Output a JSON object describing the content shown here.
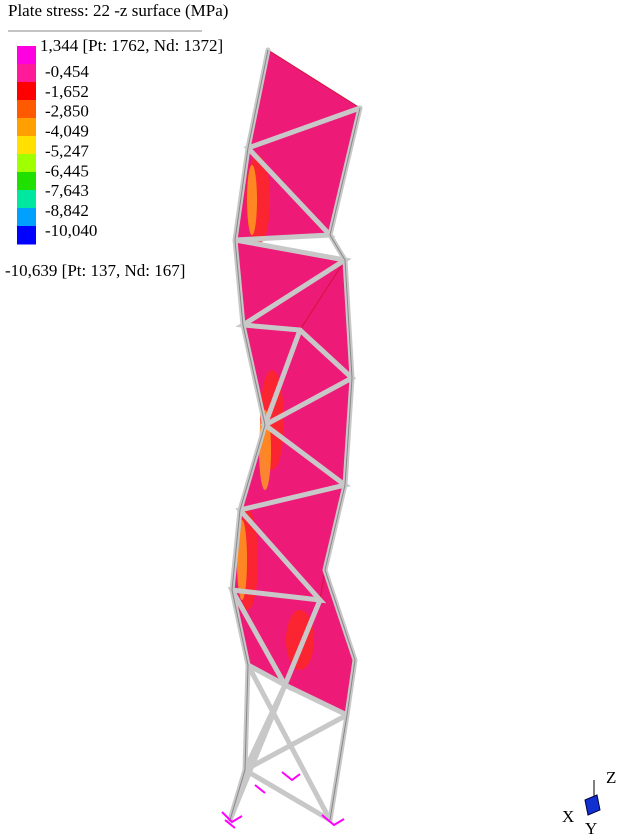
{
  "legend": {
    "title": "Plate stress: 22 -z surface (MPa)",
    "max_label": "1,344 [Pt: 1762, Nd: 1372]",
    "items": [
      {
        "label": "-0,454"
      },
      {
        "label": "-1,652"
      },
      {
        "label": "-2,850"
      },
      {
        "label": "-4,049"
      },
      {
        "label": "-5,247"
      },
      {
        "label": "-6,445"
      },
      {
        "label": "-7,643"
      },
      {
        "label": "-8,842"
      },
      {
        "label": "-10,040"
      }
    ],
    "colors": [
      "#ff00e0",
      "#ff1a9a",
      "#ff0000",
      "#ff5a00",
      "#ffa000",
      "#ffe000",
      "#a0ff00",
      "#20e000",
      "#00e8a0",
      "#00a0ff",
      "#0000ff"
    ],
    "min_label": "-10,639 [Pt: 137, Nd: 167]"
  },
  "axes": {
    "x": "X",
    "y": "Y",
    "z": "Z"
  }
}
